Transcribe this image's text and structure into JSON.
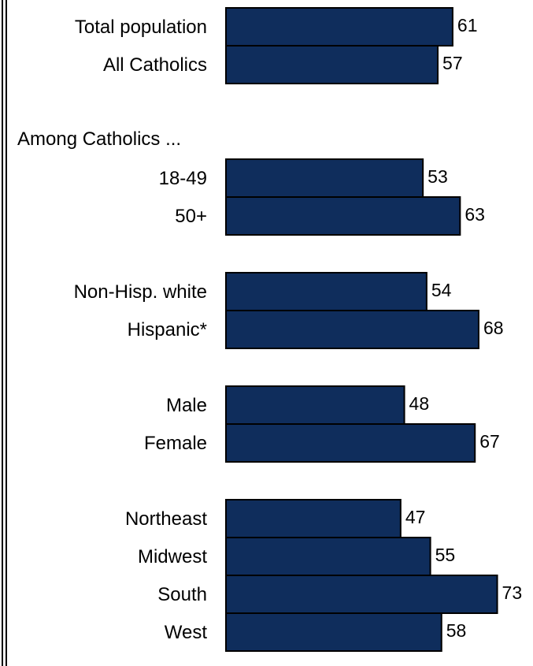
{
  "chart_data": {
    "type": "bar",
    "orientation": "horizontal",
    "bar_color": "#0f2d5c",
    "bar_border_color": "#000000",
    "groups": [
      {
        "heading": "",
        "rows": [
          {
            "label": "Total population",
            "value": 61
          },
          {
            "label": "All Catholics",
            "value": 57
          }
        ]
      },
      {
        "heading": "Among Catholics ...",
        "rows": [
          {
            "label": "18-49",
            "value": 53
          },
          {
            "label": "50+",
            "value": 63
          }
        ]
      },
      {
        "heading": "",
        "rows": [
          {
            "label": "Non-Hisp. white",
            "value": 54
          },
          {
            "label": "Hispanic*",
            "value": 68
          }
        ]
      },
      {
        "heading": "",
        "rows": [
          {
            "label": "Male",
            "value": 48
          },
          {
            "label": "Female",
            "value": 67
          }
        ]
      },
      {
        "heading": "",
        "rows": [
          {
            "label": "Northeast",
            "value": 47
          },
          {
            "label": "Midwest",
            "value": 55
          },
          {
            "label": "South",
            "value": 73
          },
          {
            "label": "West",
            "value": 58
          }
        ]
      }
    ]
  }
}
